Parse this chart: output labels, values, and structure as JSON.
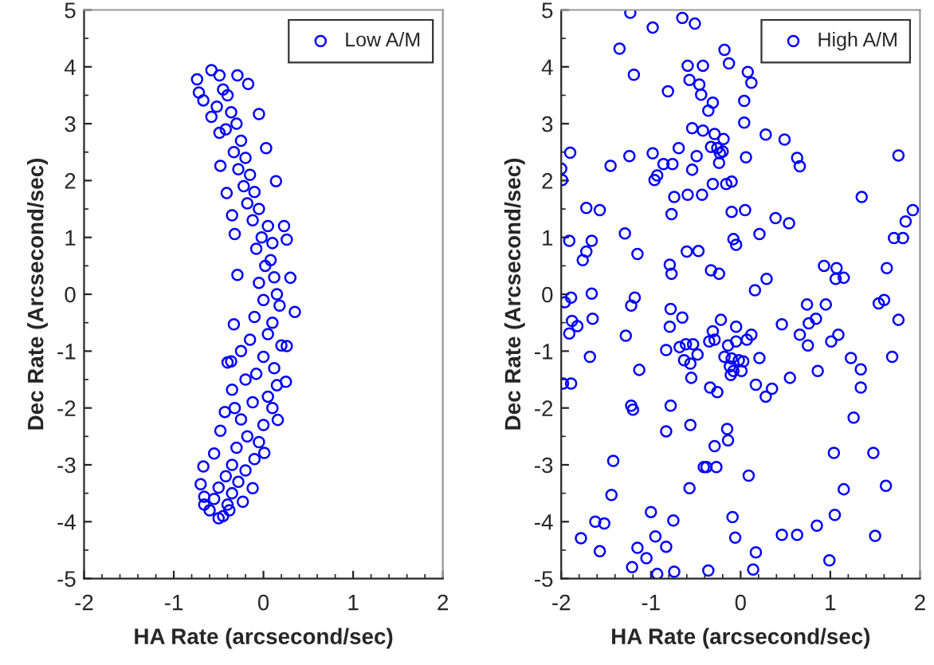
{
  "chart_data": [
    {
      "type": "scatter",
      "xlabel": "HA Rate (arcsecond/sec)",
      "ylabel": "Dec Rate (Arcsecond/sec)",
      "xlim": [
        -2,
        2
      ],
      "ylim": [
        -5,
        5
      ],
      "xticks": [
        -2,
        -1,
        0,
        1,
        2
      ],
      "yticks": [
        -5,
        -4,
        -3,
        -2,
        -1,
        0,
        1,
        2,
        3,
        4,
        5
      ],
      "legend": "top right",
      "marker": "circle",
      "series": [
        {
          "name": "Low A/M",
          "color": "#0000ff",
          "x": [
            -0.74,
            -0.72,
            -0.67,
            -0.58,
            -0.49,
            -0.29,
            -0.17,
            -0.05,
            0.03,
            0.14,
            0.23,
            0.26,
            0.3,
            0.35,
            0.26,
            0.25,
            0.16,
            0.01,
            -0.12,
            -0.23,
            -0.38,
            -0.5,
            -0.66,
            -0.67,
            -0.7,
            -0.66,
            -0.48,
            -0.43,
            -0.35,
            -0.36,
            -0.33,
            -0.29,
            -0.32,
            -0.35,
            -0.41,
            -0.48,
            -0.49,
            -0.58,
            -0.45,
            -0.4,
            -0.52,
            -0.36,
            -0.3,
            -0.42,
            -0.25,
            -0.33,
            -0.2,
            -0.28,
            -0.15,
            -0.22,
            -0.1,
            -0.18,
            -0.05,
            -0.12,
            0.05,
            -0.02,
            0.1,
            -0.08,
            0.08,
            0.02,
            0.12,
            -0.05,
            0.15,
            0.0,
            0.18,
            -0.1,
            0.1,
            0.05,
            -0.15,
            0.2,
            0.0,
            0.12,
            -0.08,
            0.15,
            -0.2,
            0.05,
            -0.12,
            0.1,
            -0.25,
            0.0,
            -0.18,
            -0.05,
            -0.3,
            -0.1,
            -0.35,
            -0.2,
            -0.42,
            -0.28,
            -0.5,
            -0.35,
            -0.55,
            -0.4,
            -0.6,
            -0.45,
            -0.32,
            -0.55,
            -0.25,
            -0.4
          ],
          "values": [
            3.78,
            3.55,
            3.41,
            3.94,
            3.85,
            3.85,
            3.7,
            3.17,
            2.57,
            1.99,
            1.2,
            0.96,
            0.29,
            -0.31,
            -0.91,
            -1.54,
            -2.21,
            -2.79,
            -3.41,
            -3.65,
            -3.8,
            -3.94,
            -3.56,
            -3.03,
            -3.34,
            -3.7,
            -2.4,
            -2.07,
            -1.68,
            -1.18,
            -0.53,
            0.34,
            1.06,
            1.39,
            1.78,
            2.26,
            2.84,
            3.12,
            3.6,
            3.5,
            3.3,
            3.2,
            3.0,
            2.9,
            2.7,
            2.5,
            2.4,
            2.2,
            2.1,
            1.9,
            1.8,
            1.6,
            1.5,
            1.3,
            1.2,
            1.0,
            0.9,
            0.8,
            0.6,
            0.5,
            0.3,
            0.2,
            0.0,
            -0.1,
            -0.2,
            -0.4,
            -0.5,
            -0.7,
            -0.8,
            -0.9,
            -1.1,
            -1.3,
            -1.4,
            -1.6,
            -1.5,
            -1.8,
            -1.9,
            -2.0,
            -2.2,
            -2.3,
            -2.5,
            -2.6,
            -2.7,
            -2.9,
            -3.0,
            -3.1,
            -3.2,
            -3.3,
            -3.4,
            -3.5,
            -3.6,
            -3.7,
            -3.8,
            -3.9,
            -2.0,
            -2.8,
            -1.0,
            -1.2
          ]
        }
      ]
    },
    {
      "type": "scatter",
      "xlabel": "HA Rate (arcsecond/sec)",
      "ylabel": "Dec Rate (Arcsecond/sec)",
      "xlim": [
        -2,
        2
      ],
      "ylim": [
        -5,
        5
      ],
      "xticks": [
        -2,
        -1,
        0,
        1,
        2
      ],
      "yticks": [
        -5,
        -4,
        -3,
        -2,
        -1,
        0,
        1,
        2,
        3,
        4,
        5
      ],
      "legend": "top right",
      "marker": "circle",
      "series": [
        {
          "name": "High A/M",
          "color": "#0000ff",
          "x": [
            -1.23,
            -0.65,
            -0.51,
            -0.98,
            -1.35,
            -0.18,
            -0.13,
            -0.59,
            -0.42,
            -1.19,
            0.08,
            0.12,
            -0.57,
            -0.46,
            -0.81,
            -0.44,
            -0.31,
            0.04,
            -0.36,
            0.04,
            -0.54,
            -0.42,
            -0.29,
            0.28,
            0.49,
            -0.19,
            -0.33,
            -0.69,
            -0.26,
            -0.23,
            -0.2,
            -0.98,
            -1.24,
            -0.49,
            0.06,
            0.63,
            -1.9,
            -2.0,
            0.66,
            1.76,
            -1.45,
            -0.86,
            -0.76,
            -0.24,
            -0.54,
            -0.93,
            -0.96,
            -1.99,
            -0.31,
            -0.16,
            -0.1,
            -0.74,
            -0.59,
            -0.43,
            1.35,
            -1.72,
            -1.57,
            -0.1,
            0.05,
            -0.77,
            1.92,
            0.39,
            0.54,
            1.84,
            -1.29,
            0.21,
            -1.91,
            -1.66,
            -0.08,
            -0.05,
            1.71,
            1.81,
            -1.72,
            -1.76,
            -1.15,
            -0.6,
            -0.47,
            -0.79,
            -0.77,
            -0.33,
            -0.24,
            0.29,
            0.16,
            0.93,
            1.07,
            1.06,
            1.15,
            1.63,
            -1.66,
            -1.18,
            -1.89,
            -1.96,
            -1.22,
            0.74,
            0.95,
            1.54,
            1.6,
            -0.78,
            -0.65,
            -1.65,
            -1.88,
            -0.22,
            0.84,
            0.76,
            1.76,
            0.46,
            -1.91,
            -1.82,
            -1.28,
            -0.79,
            -0.31,
            -0.05,
            -0.05,
            -0.35,
            -0.29,
            0.12,
            0.07,
            0.66,
            0.75,
            1.01,
            1.09,
            -1.68,
            -0.83,
            -0.68,
            -0.61,
            -0.53,
            -0.48,
            -0.63,
            -0.56,
            -0.14,
            -0.18,
            -0.1,
            -0.02,
            0.03,
            -0.12,
            -0.08,
            -0.11,
            0.01,
            0.21,
            1.23,
            1.34,
            1.69,
            -1.13,
            -1.98,
            -1.89,
            -0.55,
            -0.34,
            -0.26,
            0.17,
            0.28,
            0.35,
            0.55,
            0.86,
            1.34,
            -1.22,
            -1.2,
            -0.78,
            1.26,
            -0.83,
            -0.56,
            -0.15,
            -0.14,
            -0.29,
            1.04,
            1.48,
            -1.42,
            -0.41,
            -0.38,
            -0.27,
            0.09,
            -1.44,
            -0.57,
            1.15,
            1.62,
            -1.0,
            -0.09,
            1.05,
            -1.62,
            -1.52,
            -0.75,
            0.85,
            -1.78,
            -0.95,
            -0.06,
            0.46,
            0.63,
            1.5,
            -1.57,
            -1.15,
            -0.83,
            0.17,
            -1.05,
            0.99,
            -1.21,
            -0.93,
            -0.74,
            -0.36,
            0.14
          ],
          "values": [
            4.95,
            4.86,
            4.76,
            4.69,
            4.32,
            4.3,
            4.06,
            4.02,
            4.02,
            3.86,
            3.91,
            3.72,
            3.77,
            3.69,
            3.57,
            3.51,
            3.37,
            3.4,
            3.23,
            3.02,
            2.92,
            2.88,
            2.82,
            2.81,
            2.72,
            2.73,
            2.59,
            2.57,
            2.57,
            2.48,
            2.51,
            2.48,
            2.43,
            2.43,
            2.41,
            2.4,
            2.49,
            2.21,
            2.25,
            2.44,
            2.26,
            2.29,
            2.29,
            2.31,
            2.19,
            2.09,
            2.01,
            2.01,
            1.94,
            1.94,
            1.98,
            1.71,
            1.75,
            1.75,
            1.71,
            1.52,
            1.48,
            1.45,
            1.48,
            1.41,
            1.48,
            1.34,
            1.25,
            1.28,
            1.07,
            1.06,
            0.94,
            0.94,
            0.97,
            0.87,
            0.99,
            0.99,
            0.75,
            0.6,
            0.71,
            0.75,
            0.76,
            0.52,
            0.36,
            0.42,
            0.36,
            0.27,
            0.07,
            0.5,
            0.46,
            0.27,
            0.29,
            0.46,
            0.01,
            -0.06,
            -0.06,
            -0.14,
            -0.2,
            -0.18,
            -0.18,
            -0.16,
            -0.1,
            -0.26,
            -0.41,
            -0.43,
            -0.47,
            -0.45,
            -0.43,
            -0.51,
            -0.45,
            -0.53,
            -0.69,
            -0.56,
            -0.73,
            -0.57,
            -0.65,
            -0.57,
            -0.83,
            -0.83,
            -0.8,
            -0.71,
            -0.8,
            -0.71,
            -0.9,
            -0.83,
            -0.71,
            -1.1,
            -0.98,
            -0.93,
            -0.88,
            -0.88,
            -1.06,
            -1.16,
            -1.22,
            -0.9,
            -1.1,
            -1.13,
            -1.16,
            -1.18,
            -1.27,
            -1.35,
            -1.42,
            -1.35,
            -1.12,
            -1.12,
            -1.32,
            -1.1,
            -1.33,
            -1.57,
            -1.57,
            -1.47,
            -1.64,
            -1.72,
            -1.59,
            -1.8,
            -1.66,
            -1.47,
            -1.35,
            -1.64,
            -1.96,
            -2.03,
            -1.96,
            -2.17,
            -2.41,
            -2.3,
            -2.37,
            -2.57,
            -2.67,
            -2.79,
            -2.79,
            -2.93,
            -3.04,
            -3.04,
            -3.04,
            -3.19,
            -3.53,
            -3.41,
            -3.43,
            -3.37,
            -3.83,
            -3.92,
            -3.88,
            -4.0,
            -4.03,
            -3.98,
            -4.07,
            -4.29,
            -4.26,
            -4.28,
            -4.23,
            -4.23,
            -4.25,
            -4.52,
            -4.46,
            -4.44,
            -4.54,
            -4.64,
            -4.68,
            -4.8,
            -4.92,
            -4.88,
            -4.86,
            -4.84
          ]
        }
      ]
    }
  ]
}
